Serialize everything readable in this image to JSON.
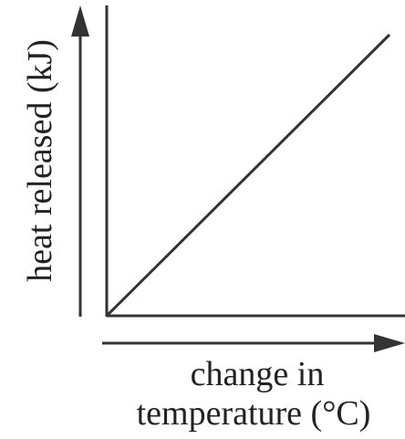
{
  "chart_data": {
    "type": "line",
    "xlabel_lines": [
      "change in",
      "temperature (°C)"
    ],
    "ylabel": "heat released (kJ)",
    "ticks": "none",
    "grid": false,
    "series": [
      {
        "x": [
          0,
          1
        ],
        "y": [
          0,
          1
        ]
      }
    ],
    "xlim": [
      0,
      1
    ],
    "ylim": [
      0,
      1
    ]
  },
  "colors": {
    "ink": "#333333"
  }
}
